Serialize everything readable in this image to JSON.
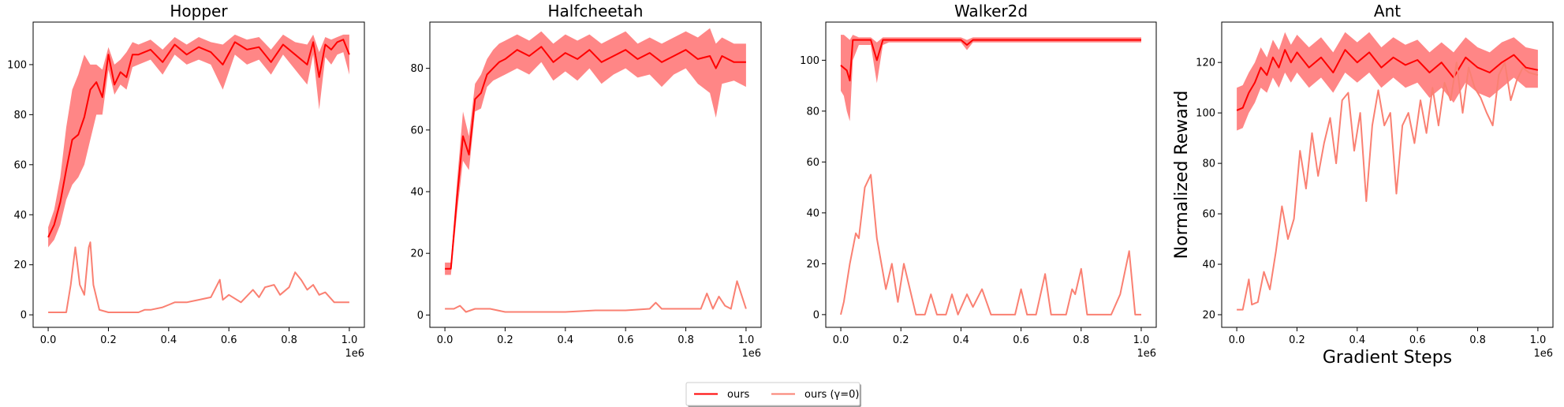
{
  "legend": {
    "location": "bottom-center",
    "entries": [
      {
        "label": "ours",
        "color": "#ff0000"
      },
      {
        "label": "ours (γ=0)",
        "color": "#fa8072"
      }
    ]
  },
  "colors": {
    "ours_line": "#ff0000",
    "ours_band": "#ff7f7f",
    "gamma0_line": "#fa8072"
  },
  "chart_data": [
    {
      "type": "line",
      "title": "Hopper",
      "xlabel": "",
      "ylabel": "",
      "x_offset_label": "1e6",
      "xlim": [
        -0.05,
        1.05
      ],
      "ylim": [
        -5,
        117
      ],
      "xticks": [
        0.0,
        0.2,
        0.4,
        0.6,
        0.8,
        1.0
      ],
      "xtick_labels": [
        "0.0",
        "0.2",
        "0.4",
        "0.6",
        "0.8",
        "1.0"
      ],
      "yticks": [
        0,
        20,
        40,
        60,
        80,
        100
      ],
      "ytick_labels": [
        "0",
        "20",
        "40",
        "60",
        "80",
        "100"
      ],
      "grid": false,
      "series": [
        {
          "name": "ours",
          "x": [
            0.0,
            0.02,
            0.04,
            0.06,
            0.08,
            0.1,
            0.12,
            0.14,
            0.16,
            0.18,
            0.2,
            0.22,
            0.24,
            0.26,
            0.28,
            0.3,
            0.34,
            0.38,
            0.42,
            0.46,
            0.5,
            0.54,
            0.58,
            0.62,
            0.66,
            0.7,
            0.74,
            0.78,
            0.82,
            0.86,
            0.88,
            0.9,
            0.92,
            0.94,
            0.96,
            0.98,
            1.0
          ],
          "y": [
            31,
            36,
            45,
            58,
            70,
            72,
            79,
            90,
            93,
            87,
            104,
            92,
            97,
            95,
            104,
            104,
            106,
            101,
            108,
            104,
            107,
            105,
            100,
            109,
            106,
            107,
            101,
            108,
            104,
            100,
            109,
            95,
            108,
            106,
            109,
            110,
            104
          ],
          "lower": [
            27,
            30,
            36,
            46,
            52,
            55,
            60,
            70,
            80,
            80,
            98,
            88,
            92,
            90,
            99,
            100,
            102,
            96,
            104,
            100,
            102,
            100,
            90,
            104,
            100,
            102,
            96,
            104,
            98,
            92,
            104,
            82,
            103,
            100,
            104,
            105,
            96
          ],
          "upper": [
            35,
            42,
            55,
            75,
            90,
            96,
            104,
            100,
            100,
            98,
            107,
            100,
            102,
            105,
            109,
            108,
            110,
            106,
            111,
            108,
            111,
            109,
            108,
            112,
            110,
            111,
            106,
            112,
            109,
            108,
            112,
            105,
            111,
            110,
            111,
            112,
            112
          ]
        },
        {
          "name": "ours (γ=0)",
          "x": [
            0.0,
            0.06,
            0.075,
            0.09,
            0.105,
            0.12,
            0.135,
            0.14,
            0.15,
            0.17,
            0.2,
            0.3,
            0.32,
            0.34,
            0.38,
            0.4,
            0.42,
            0.46,
            0.5,
            0.54,
            0.57,
            0.58,
            0.6,
            0.64,
            0.68,
            0.7,
            0.72,
            0.75,
            0.77,
            0.8,
            0.82,
            0.84,
            0.86,
            0.88,
            0.9,
            0.92,
            0.95,
            1.0
          ],
          "y": [
            1,
            1,
            12,
            27,
            12,
            8,
            27,
            29,
            12,
            2,
            1,
            1,
            2,
            2,
            3,
            4,
            5,
            5,
            6,
            7,
            14,
            6,
            8,
            5,
            10,
            7,
            11,
            12,
            8,
            11,
            17,
            14,
            10,
            12,
            8,
            9,
            5,
            5
          ]
        }
      ]
    },
    {
      "type": "line",
      "title": "Halfcheetah",
      "xlabel": "",
      "ylabel": "",
      "x_offset_label": "1e6",
      "xlim": [
        -0.05,
        1.05
      ],
      "ylim": [
        -4,
        95
      ],
      "xticks": [
        0.0,
        0.2,
        0.4,
        0.6,
        0.8,
        1.0
      ],
      "xtick_labels": [
        "0.0",
        "0.2",
        "0.4",
        "0.6",
        "0.8",
        "1.0"
      ],
      "yticks": [
        0,
        20,
        40,
        60,
        80
      ],
      "ytick_labels": [
        "0",
        "20",
        "40",
        "60",
        "80"
      ],
      "grid": false,
      "series": [
        {
          "name": "ours",
          "x": [
            0.0,
            0.02,
            0.04,
            0.06,
            0.08,
            0.1,
            0.12,
            0.14,
            0.16,
            0.18,
            0.2,
            0.24,
            0.28,
            0.32,
            0.36,
            0.4,
            0.44,
            0.48,
            0.52,
            0.56,
            0.6,
            0.64,
            0.68,
            0.72,
            0.76,
            0.8,
            0.84,
            0.88,
            0.9,
            0.92,
            0.96,
            1.0
          ],
          "y": [
            15,
            15,
            38,
            58,
            52,
            70,
            72,
            78,
            80,
            82,
            83,
            86,
            84,
            87,
            82,
            85,
            83,
            86,
            82,
            84,
            86,
            83,
            85,
            82,
            84,
            86,
            83,
            84,
            80,
            84,
            82,
            82
          ],
          "lower": [
            13,
            13,
            33,
            50,
            47,
            66,
            67,
            74,
            76,
            77,
            78,
            80,
            78,
            82,
            76,
            79,
            76,
            80,
            75,
            78,
            80,
            77,
            78,
            74,
            78,
            80,
            75,
            72,
            64,
            75,
            76,
            74
          ],
          "upper": [
            17,
            17,
            43,
            66,
            58,
            75,
            78,
            83,
            86,
            88,
            89,
            91,
            89,
            92,
            88,
            91,
            89,
            91,
            88,
            90,
            92,
            88,
            90,
            88,
            90,
            92,
            90,
            93,
            88,
            90,
            88,
            88
          ]
        },
        {
          "name": "ours (γ=0)",
          "x": [
            0.0,
            0.03,
            0.05,
            0.07,
            0.1,
            0.15,
            0.2,
            0.3,
            0.4,
            0.5,
            0.6,
            0.68,
            0.7,
            0.72,
            0.8,
            0.85,
            0.87,
            0.89,
            0.91,
            0.93,
            0.95,
            0.97,
            1.0
          ],
          "y": [
            2,
            2,
            3,
            1,
            2,
            2,
            1,
            1,
            1,
            1.5,
            1.5,
            2,
            4,
            2,
            2,
            2,
            7,
            2,
            6,
            3,
            2,
            11,
            2
          ]
        }
      ]
    },
    {
      "type": "line",
      "title": "Walker2d",
      "xlabel": "",
      "ylabel": "",
      "x_offset_label": "1e6",
      "xlim": [
        -0.05,
        1.05
      ],
      "ylim": [
        -5,
        115
      ],
      "xticks": [
        0.0,
        0.2,
        0.4,
        0.6,
        0.8,
        1.0
      ],
      "xtick_labels": [
        "0.0",
        "0.2",
        "0.4",
        "0.6",
        "0.8",
        "1.0"
      ],
      "yticks": [
        0,
        20,
        40,
        60,
        80,
        100
      ],
      "ytick_labels": [
        "0",
        "20",
        "40",
        "60",
        "80",
        "100"
      ],
      "grid": false,
      "series": [
        {
          "name": "ours",
          "x": [
            0.0,
            0.01,
            0.02,
            0.03,
            0.04,
            0.06,
            0.08,
            0.1,
            0.12,
            0.14,
            0.16,
            0.2,
            0.3,
            0.4,
            0.42,
            0.44,
            0.5,
            0.6,
            0.7,
            0.8,
            0.9,
            1.0
          ],
          "y": [
            98,
            97,
            96,
            92,
            108,
            108,
            108,
            108,
            100,
            108,
            108,
            108,
            108,
            108,
            106,
            108,
            108,
            108,
            108,
            108,
            108,
            108
          ],
          "lower": [
            88,
            86,
            80,
            76,
            100,
            106,
            106,
            106,
            91,
            106,
            107,
            107,
            107,
            107,
            104,
            107,
            107,
            107,
            107,
            107,
            107,
            107
          ],
          "upper": [
            110,
            110,
            109,
            108,
            110,
            109,
            109,
            109,
            107,
            109,
            109,
            109,
            109,
            109,
            108,
            109,
            109,
            109,
            109,
            109,
            109,
            109
          ]
        },
        {
          "name": "ours (γ=0)",
          "x": [
            0.0,
            0.01,
            0.03,
            0.05,
            0.06,
            0.08,
            0.1,
            0.12,
            0.15,
            0.17,
            0.19,
            0.21,
            0.23,
            0.25,
            0.28,
            0.3,
            0.32,
            0.35,
            0.37,
            0.39,
            0.42,
            0.44,
            0.47,
            0.5,
            0.55,
            0.58,
            0.6,
            0.62,
            0.65,
            0.68,
            0.7,
            0.75,
            0.77,
            0.78,
            0.8,
            0.82,
            0.85,
            0.9,
            0.93,
            0.96,
            0.98,
            1.0
          ],
          "y": [
            0,
            5,
            20,
            32,
            30,
            50,
            55,
            30,
            10,
            20,
            5,
            20,
            10,
            0,
            0,
            8,
            0,
            0,
            8,
            0,
            8,
            3,
            10,
            0,
            0,
            0,
            10,
            0,
            0,
            16,
            0,
            0,
            10,
            8,
            18,
            0,
            0,
            0,
            8,
            25,
            0,
            0
          ]
        }
      ]
    },
    {
      "type": "line",
      "title": "Ant",
      "xlabel": "Gradient Steps",
      "ylabel": "Normalized Reward",
      "x_offset_label": "1e6",
      "xlim": [
        -0.05,
        1.05
      ],
      "ylim": [
        15,
        136
      ],
      "xticks": [
        0.0,
        0.2,
        0.4,
        0.6,
        0.8,
        1.0
      ],
      "xtick_labels": [
        "0.0",
        "0.2",
        "0.4",
        "0.6",
        "0.8",
        "1.0"
      ],
      "yticks": [
        20,
        40,
        60,
        80,
        100,
        120
      ],
      "ytick_labels": [
        "20",
        "40",
        "60",
        "80",
        "100",
        "120"
      ],
      "grid": false,
      "series": [
        {
          "name": "ours",
          "x": [
            0.0,
            0.02,
            0.04,
            0.06,
            0.08,
            0.1,
            0.12,
            0.14,
            0.16,
            0.18,
            0.2,
            0.24,
            0.28,
            0.32,
            0.36,
            0.4,
            0.44,
            0.48,
            0.52,
            0.56,
            0.6,
            0.64,
            0.68,
            0.72,
            0.76,
            0.8,
            0.84,
            0.88,
            0.92,
            0.96,
            1.0
          ],
          "y": [
            101,
            102,
            108,
            112,
            118,
            115,
            122,
            118,
            125,
            120,
            124,
            118,
            122,
            116,
            125,
            120,
            124,
            118,
            122,
            119,
            121,
            116,
            120,
            114,
            122,
            118,
            116,
            120,
            123,
            118,
            117
          ],
          "lower": [
            93,
            94,
            100,
            104,
            110,
            108,
            114,
            110,
            116,
            112,
            116,
            110,
            114,
            108,
            116,
            112,
            116,
            110,
            114,
            110,
            112,
            106,
            110,
            104,
            112,
            108,
            106,
            110,
            114,
            110,
            110
          ],
          "upper": [
            110,
            111,
            116,
            120,
            126,
            122,
            129,
            125,
            132,
            127,
            131,
            126,
            130,
            124,
            132,
            128,
            132,
            126,
            130,
            127,
            129,
            124,
            128,
            124,
            130,
            126,
            124,
            128,
            130,
            126,
            125
          ]
        },
        {
          "name": "ours (γ=0)",
          "x": [
            0.0,
            0.02,
            0.04,
            0.05,
            0.07,
            0.09,
            0.11,
            0.13,
            0.15,
            0.17,
            0.19,
            0.21,
            0.23,
            0.25,
            0.27,
            0.29,
            0.31,
            0.33,
            0.35,
            0.37,
            0.39,
            0.41,
            0.43,
            0.45,
            0.47,
            0.49,
            0.51,
            0.53,
            0.55,
            0.57,
            0.59,
            0.61,
            0.63,
            0.65,
            0.67,
            0.69,
            0.71,
            0.73,
            0.75,
            0.77,
            0.79,
            0.81,
            0.83,
            0.85,
            0.87,
            0.89,
            0.91,
            0.93,
            0.95,
            0.97,
            1.0
          ],
          "y": [
            22,
            22,
            34,
            24,
            25,
            37,
            30,
            45,
            63,
            50,
            58,
            85,
            70,
            92,
            75,
            88,
            98,
            80,
            105,
            108,
            85,
            100,
            65,
            95,
            109,
            95,
            100,
            68,
            95,
            100,
            88,
            105,
            92,
            110,
            95,
            112,
            105,
            120,
            100,
            118,
            110,
            106,
            100,
            95,
            115,
            120,
            105,
            113,
            118,
            116,
            115
          ]
        }
      ]
    }
  ]
}
